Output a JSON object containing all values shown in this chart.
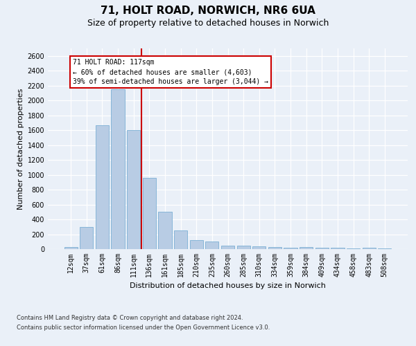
{
  "title": "71, HOLT ROAD, NORWICH, NR6 6UA",
  "subtitle": "Size of property relative to detached houses in Norwich",
  "xlabel": "Distribution of detached houses by size in Norwich",
  "ylabel": "Number of detached properties",
  "footnote1": "Contains HM Land Registry data © Crown copyright and database right 2024.",
  "footnote2": "Contains public sector information licensed under the Open Government Licence v3.0.",
  "bar_labels": [
    "12sqm",
    "37sqm",
    "61sqm",
    "86sqm",
    "111sqm",
    "136sqm",
    "161sqm",
    "185sqm",
    "210sqm",
    "235sqm",
    "260sqm",
    "285sqm",
    "310sqm",
    "334sqm",
    "359sqm",
    "384sqm",
    "409sqm",
    "434sqm",
    "458sqm",
    "483sqm",
    "508sqm"
  ],
  "bar_values": [
    25,
    300,
    1670,
    2150,
    1600,
    960,
    500,
    250,
    120,
    100,
    50,
    50,
    35,
    30,
    20,
    30,
    20,
    20,
    5,
    20,
    5
  ],
  "bar_color": "#b8cce4",
  "bar_edgecolor": "#7bafd4",
  "vline_index": 4,
  "vline_color": "#cc0000",
  "annotation_line1": "71 HOLT ROAD: 117sqm",
  "annotation_line2": "← 60% of detached houses are smaller (4,603)",
  "annotation_line3": "39% of semi-detached houses are larger (3,044) →",
  "annotation_box_edgecolor": "#cc0000",
  "ylim_max": 2700,
  "ytick_step": 200,
  "bg_color": "#eaf0f8",
  "grid_color": "#ffffff",
  "title_fontsize": 11,
  "subtitle_fontsize": 9,
  "tick_fontsize": 7,
  "axis_label_fontsize": 8,
  "footnote_fontsize": 6
}
